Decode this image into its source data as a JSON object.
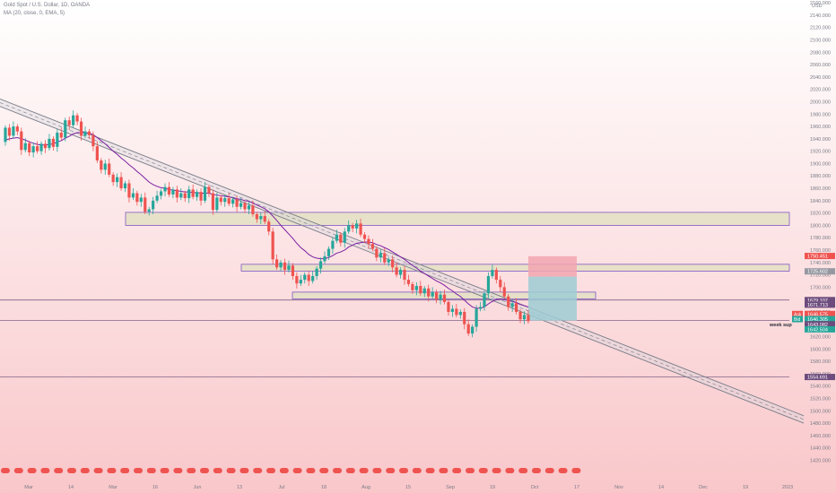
{
  "legend": {
    "symbol_line": "Gold Spot / U.S. Dollar, 1D, OANDA",
    "ma_line": "MA (20, close, 0, EMA, 5)"
  },
  "colors": {
    "up": "#26a69a",
    "down": "#ef5350",
    "ma": "#7b1fa2",
    "zone_fill": "#e2e0c2",
    "zone_border": "#7e57c2",
    "channel": "#787b86",
    "bg_top": "#ffffff",
    "bg_bottom": "#f9c7ca",
    "take_profit": "#9ecdd3",
    "stop_loss": "#f2a5b0"
  },
  "chart_data": {
    "type": "candlestick",
    "currency": "USD",
    "ylim": [
      1405,
      2165
    ],
    "yticks": [
      2160,
      2140,
      2120,
      2100,
      2080,
      2060,
      2040,
      2020,
      2000,
      1980,
      1960,
      1940,
      1920,
      1900,
      1880,
      1860,
      1840,
      1820,
      1800,
      1780,
      1760,
      1740,
      1720,
      1700,
      1680,
      1660,
      1640,
      1620,
      1600,
      1580,
      1560,
      1540,
      1520,
      1500,
      1480,
      1460,
      1440,
      1420
    ],
    "xlabels": [
      "Mar",
      "14",
      "Mar",
      "16",
      "Jun",
      "13",
      "Jul",
      "18",
      "Aug",
      "15",
      "Sep",
      "19",
      "Oct",
      "17",
      "Nov",
      "14",
      "Dec",
      "19",
      "2023"
    ],
    "price_tags": [
      {
        "value": "1750.451",
        "color": "#ef5350",
        "level": 1750.45
      },
      {
        "value": "1725.602",
        "color": "#9598a1",
        "level": 1725.6
      },
      {
        "value": "1679.107",
        "color": "#6d4c7d",
        "level": 1679.1
      },
      {
        "value": "1671.713",
        "color": "#6d4c7d",
        "level": 1671.7
      },
      {
        "value": "1646.575",
        "color": "#ef5350",
        "level": 1656.6,
        "prefix": "Ask"
      },
      {
        "value": "1646.305",
        "color": "#26a69a",
        "level": 1648.3,
        "prefix": "Bid"
      },
      {
        "value": "1643.082",
        "color": "#6d4c7d",
        "level": 1640.0
      },
      {
        "value": "1642.504",
        "color": "#26a69a",
        "level": 1631.8
      },
      {
        "value": "1554.691",
        "color": "#6d4c7d",
        "level": 1554.7
      }
    ],
    "annotation": "week sup",
    "zones": [
      {
        "y1": 1821,
        "y2": 1800
      },
      {
        "y1": 1737,
        "y2": 1726
      },
      {
        "y1": 1692,
        "y2": 1681
      }
    ],
    "horizontal_lines": [
      1679.1,
      1646.4,
      1554.7
    ],
    "channel": {
      "top": [
        1990,
        1492
      ],
      "bottom": [
        1978,
        1480
      ]
    },
    "position": {
      "entry": 1717,
      "target": 1646,
      "stop": 1750
    },
    "candles": [
      [
        1935,
        1958
      ],
      [
        1958,
        1945
      ],
      [
        1945,
        1960
      ],
      [
        1960,
        1952
      ],
      [
        1952,
        1922
      ],
      [
        1922,
        1933
      ],
      [
        1933,
        1918
      ],
      [
        1918,
        1928
      ],
      [
        1928,
        1920
      ],
      [
        1920,
        1932
      ],
      [
        1932,
        1925
      ],
      [
        1925,
        1940
      ],
      [
        1940,
        1927
      ],
      [
        1927,
        1950
      ],
      [
        1950,
        1942
      ],
      [
        1942,
        1970
      ],
      [
        1970,
        1962
      ],
      [
        1962,
        1978
      ],
      [
        1978,
        1968
      ],
      [
        1968,
        1945
      ],
      [
        1945,
        1952
      ],
      [
        1952,
        1946
      ],
      [
        1946,
        1928
      ],
      [
        1928,
        1905
      ],
      [
        1905,
        1890
      ],
      [
        1890,
        1900
      ],
      [
        1900,
        1882
      ],
      [
        1882,
        1870
      ],
      [
        1870,
        1878
      ],
      [
        1878,
        1860
      ],
      [
        1860,
        1868
      ],
      [
        1868,
        1845
      ],
      [
        1845,
        1852
      ],
      [
        1852,
        1838
      ],
      [
        1838,
        1845
      ],
      [
        1845,
        1822
      ],
      [
        1822,
        1826
      ],
      [
        1826,
        1840
      ],
      [
        1840,
        1848
      ],
      [
        1848,
        1855
      ],
      [
        1855,
        1862
      ],
      [
        1862,
        1850
      ],
      [
        1850,
        1858
      ],
      [
        1858,
        1845
      ],
      [
        1845,
        1852
      ],
      [
        1852,
        1844
      ],
      [
        1844,
        1858
      ],
      [
        1858,
        1846
      ],
      [
        1846,
        1854
      ],
      [
        1854,
        1840
      ],
      [
        1840,
        1862
      ],
      [
        1862,
        1852
      ],
      [
        1852,
        1825
      ],
      [
        1825,
        1845
      ],
      [
        1845,
        1838
      ],
      [
        1838,
        1844
      ],
      [
        1844,
        1835
      ],
      [
        1835,
        1842
      ],
      [
        1842,
        1830
      ],
      [
        1830,
        1836
      ],
      [
        1836,
        1826
      ],
      [
        1826,
        1832
      ],
      [
        1832,
        1818
      ],
      [
        1818,
        1810
      ],
      [
        1810,
        1815
      ],
      [
        1815,
        1806
      ],
      [
        1806,
        1790
      ],
      [
        1790,
        1745
      ],
      [
        1745,
        1732
      ],
      [
        1732,
        1740
      ],
      [
        1740,
        1728
      ],
      [
        1728,
        1735
      ],
      [
        1735,
        1718
      ],
      [
        1718,
        1706
      ],
      [
        1706,
        1712
      ],
      [
        1712,
        1720
      ],
      [
        1720,
        1710
      ],
      [
        1710,
        1718
      ],
      [
        1718,
        1730
      ],
      [
        1730,
        1742
      ],
      [
        1742,
        1750
      ],
      [
        1750,
        1762
      ],
      [
        1762,
        1775
      ],
      [
        1775,
        1785
      ],
      [
        1785,
        1772
      ],
      [
        1772,
        1790
      ],
      [
        1790,
        1800
      ],
      [
        1800,
        1795
      ],
      [
        1795,
        1803
      ],
      [
        1803,
        1785
      ],
      [
        1785,
        1778
      ],
      [
        1778,
        1770
      ],
      [
        1770,
        1762
      ],
      [
        1762,
        1748
      ],
      [
        1748,
        1755
      ],
      [
        1755,
        1740
      ],
      [
        1740,
        1745
      ],
      [
        1745,
        1732
      ],
      [
        1732,
        1720
      ],
      [
        1720,
        1728
      ],
      [
        1728,
        1712
      ],
      [
        1712,
        1705
      ],
      [
        1705,
        1695
      ],
      [
        1695,
        1702
      ],
      [
        1702,
        1690
      ],
      [
        1690,
        1698
      ],
      [
        1698,
        1685
      ],
      [
        1685,
        1692
      ],
      [
        1692,
        1680
      ],
      [
        1680,
        1688
      ],
      [
        1688,
        1676
      ],
      [
        1676,
        1660
      ],
      [
        1660,
        1665
      ],
      [
        1665,
        1655
      ],
      [
        1655,
        1660
      ],
      [
        1660,
        1640
      ],
      [
        1640,
        1625
      ],
      [
        1625,
        1636
      ],
      [
        1636,
        1665
      ],
      [
        1665,
        1668
      ],
      [
        1668,
        1690
      ],
      [
        1690,
        1718
      ],
      [
        1718,
        1728
      ],
      [
        1728,
        1712
      ],
      [
        1712,
        1700
      ],
      [
        1700,
        1685
      ],
      [
        1685,
        1668
      ],
      [
        1668,
        1674
      ],
      [
        1674,
        1660
      ],
      [
        1660,
        1648
      ],
      [
        1648,
        1655
      ],
      [
        1655,
        1645
      ]
    ],
    "ma": [
      1938,
      1940,
      1941,
      1942,
      1940,
      1938,
      1935,
      1933,
      1931,
      1930,
      1930,
      1931,
      1932,
      1935,
      1937,
      1941,
      1944,
      1948,
      1950,
      1950,
      1950,
      1949,
      1947,
      1942,
      1937,
      1932,
      1926,
      1920,
      1915,
      1909,
      1904,
      1898,
      1893,
      1887,
      1882,
      1876,
      1870,
      1866,
      1863,
      1861,
      1860,
      1858,
      1857,
      1856,
      1855,
      1854,
      1854,
      1853,
      1853,
      1852,
      1852,
      1852,
      1850,
      1849,
      1848,
      1847,
      1846,
      1845,
      1843,
      1842,
      1840,
      1839,
      1836,
      1833,
      1830,
      1827,
      1822,
      1815,
      1808,
      1800,
      1793,
      1786,
      1779,
      1771,
      1764,
      1759,
      1753,
      1749,
      1747,
      1746,
      1746,
      1748,
      1751,
      1755,
      1757,
      1760,
      1765,
      1768,
      1771,
      1772,
      1773,
      1773,
      1772,
      1769,
      1767,
      1764,
      1761,
      1757,
      1753,
      1749,
      1745,
      1740,
      1735,
      1731,
      1726,
      1722,
      1718,
      1714,
      1710,
      1707,
      1703,
      1698,
      1694,
      1689,
      1685,
      1679,
      1673,
      1668,
      1666,
      1666,
      1668,
      1673,
      1677,
      1680,
      1681,
      1680,
      1678,
      1677,
      1675,
      1672,
      1670,
      1668
    ]
  }
}
